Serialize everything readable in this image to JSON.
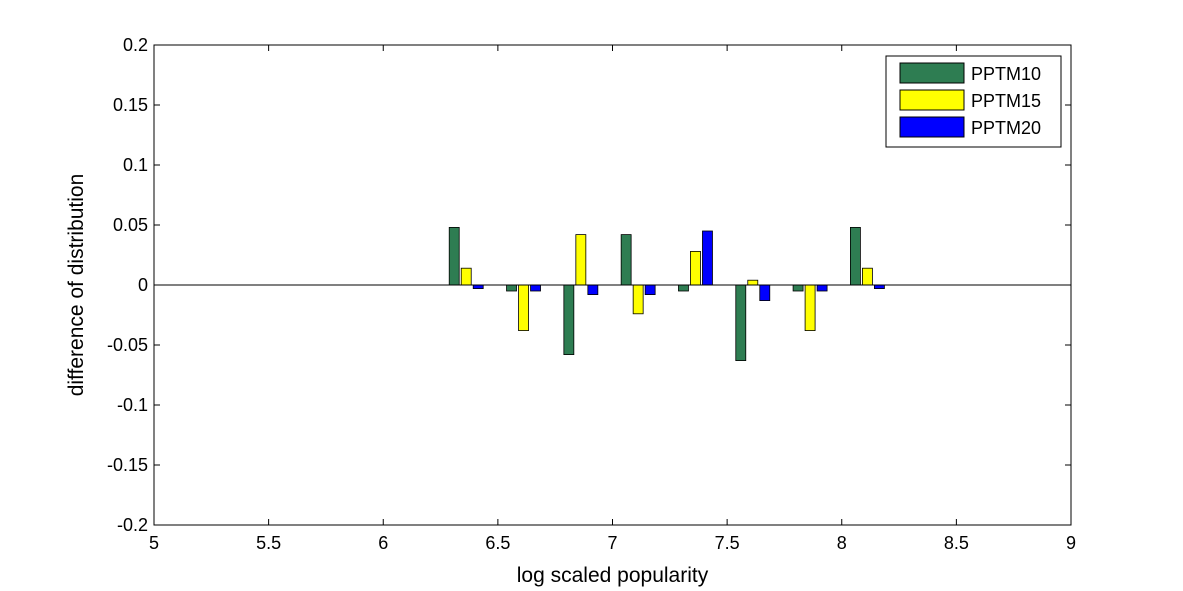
{
  "chart_data": {
    "type": "bar",
    "title": "",
    "xlabel": "log scaled popularity",
    "ylabel": "difference of distribution",
    "xlim": [
      5,
      9
    ],
    "ylim": [
      -0.2,
      0.2
    ],
    "xticks": [
      5,
      5.5,
      6,
      6.5,
      7,
      7.5,
      8,
      8.5,
      9
    ],
    "yticks": [
      -0.2,
      -0.15,
      -0.1,
      -0.05,
      0,
      0.05,
      0.1,
      0.15,
      0.2
    ],
    "xtick_labels": [
      "5",
      "5.5",
      "6",
      "6.5",
      "7",
      "7.5",
      "8",
      "8.5",
      "9"
    ],
    "ytick_labels": [
      "-0.2",
      "-0.15",
      "-0.1",
      "-0.05",
      "0",
      "0.05",
      "0.1",
      "0.15",
      "0.2"
    ],
    "grid": false,
    "legend_position": "top-right",
    "x": [
      6.375,
      6.625,
      6.875,
      7.125,
      7.375,
      7.625,
      7.875,
      8.125
    ],
    "series": [
      {
        "name": "PPTM10",
        "color": "#2e7d52",
        "values": [
          0.048,
          -0.005,
          -0.058,
          0.042,
          -0.005,
          -0.063,
          -0.005,
          0.048
        ]
      },
      {
        "name": "PPTM15",
        "color": "#ffff00",
        "values": [
          0.014,
          -0.038,
          0.042,
          -0.024,
          0.028,
          0.004,
          -0.038,
          0.014
        ]
      },
      {
        "name": "PPTM20",
        "color": "#0000ff",
        "values": [
          -0.003,
          -0.005,
          -0.008,
          -0.008,
          0.045,
          -0.013,
          -0.005,
          -0.003
        ]
      }
    ]
  }
}
